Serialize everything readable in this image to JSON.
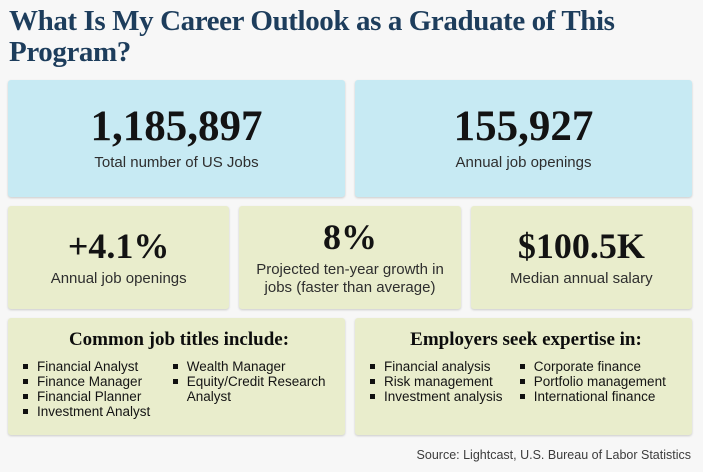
{
  "page": {
    "title": "What Is My Career Outlook as a Graduate of This Program?",
    "source_note": "Source: Lightcast, U.S. Bureau of Labor Statistics"
  },
  "colors": {
    "page_bg": "#f7f7f7",
    "card_blue": "#c7eaf3",
    "card_green": "#e9edcc",
    "title_navy": "#1d3d5c",
    "text_black": "#131313"
  },
  "primary_stats": [
    {
      "value": "1,185,897",
      "label": "Total number of US Jobs"
    },
    {
      "value": "155,927",
      "label": "Annual job openings"
    }
  ],
  "secondary_stats": [
    {
      "value": "+4.1%",
      "label": "Annual job openings"
    },
    {
      "value": "8%",
      "label": "Projected ten-year growth in jobs (faster than average)"
    },
    {
      "value": "$100.5K",
      "label": "Median annual salary"
    }
  ],
  "job_titles": {
    "heading": "Common job titles include:",
    "columns": [
      [
        "Financial Analyst",
        "Finance Manager",
        "Financial Planner",
        "Investment Analyst"
      ],
      [
        "Wealth Manager",
        "Equity/Credit Research Analyst"
      ]
    ]
  },
  "expertise": {
    "heading": "Employers seek expertise in:",
    "columns": [
      [
        "Financial analysis",
        "Risk management",
        "Investment analysis"
      ],
      [
        "Corporate finance",
        "Portfolio management",
        "International finance"
      ]
    ]
  }
}
